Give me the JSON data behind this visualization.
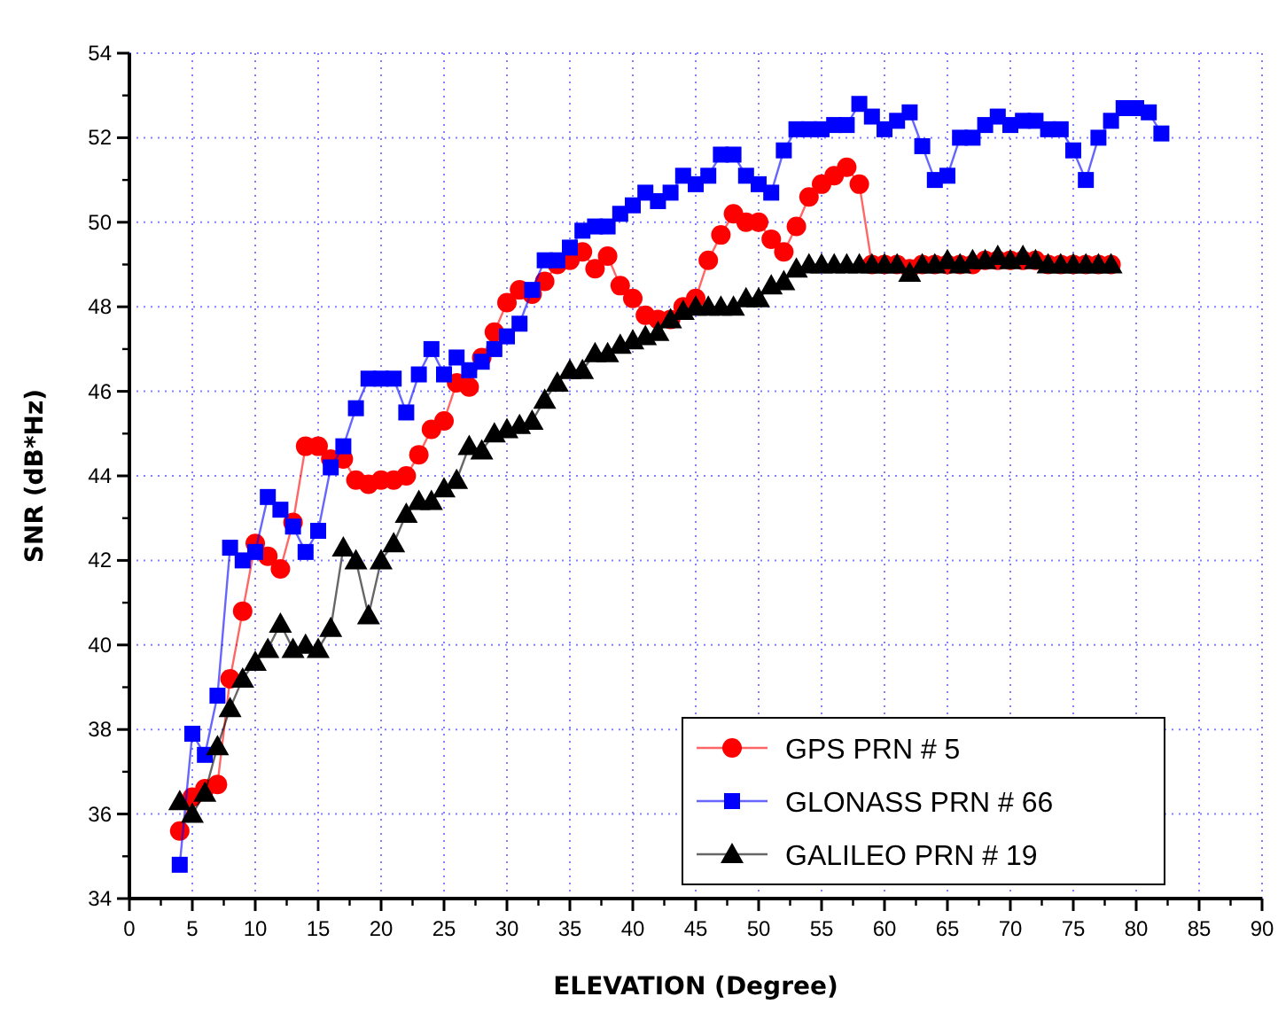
{
  "chart_data": {
    "type": "line",
    "xlabel": "ELEVATION (Degree)",
    "ylabel": "SNR (dB*Hz)",
    "xlim": [
      0,
      90
    ],
    "xticks": [
      0,
      5,
      10,
      15,
      20,
      25,
      30,
      35,
      40,
      45,
      50,
      55,
      60,
      65,
      70,
      75,
      80,
      85,
      90
    ],
    "ylim": [
      34,
      54
    ],
    "yticks": [
      34,
      36,
      38,
      40,
      42,
      44,
      46,
      48,
      50,
      52,
      54
    ],
    "grid": true,
    "legend": "bottom right",
    "line_style": "solid",
    "series": [
      {
        "name": "GPS PRN # 5",
        "color": "#ff0000",
        "marker": "circle",
        "x": [
          4,
          5,
          6,
          7,
          8,
          9,
          10,
          11,
          12,
          13,
          14,
          15,
          16,
          17,
          18,
          19,
          20,
          21,
          22,
          23,
          24,
          25,
          26,
          27,
          28,
          29,
          30,
          31,
          32,
          33,
          34,
          35,
          36,
          37,
          38,
          39,
          40,
          41,
          42,
          43,
          44,
          45,
          46,
          47,
          48,
          49,
          50,
          51,
          52,
          53,
          54,
          55,
          56,
          57,
          58,
          59,
          60,
          61,
          62,
          63,
          64,
          65,
          66,
          67,
          68,
          69,
          70,
          71,
          72,
          73,
          74,
          75,
          76,
          77,
          78
        ],
        "values": [
          35.6,
          36.4,
          36.6,
          36.7,
          39.2,
          40.8,
          42.4,
          42.1,
          41.8,
          42.9,
          44.7,
          44.7,
          44.4,
          44.4,
          43.9,
          43.8,
          43.9,
          43.9,
          44.0,
          44.5,
          45.1,
          45.3,
          46.2,
          46.1,
          46.8,
          47.4,
          48.1,
          48.4,
          48.3,
          48.6,
          49.0,
          49.1,
          49.3,
          48.9,
          49.2,
          48.5,
          48.2,
          47.8,
          47.7,
          47.7,
          48.0,
          48.2,
          49.1,
          49.7,
          50.2,
          50.0,
          50.0,
          49.6,
          49.3,
          49.9,
          50.6,
          50.9,
          51.1,
          51.3,
          50.9,
          49.0,
          49.0,
          49.0,
          48.9,
          49.0,
          49.0,
          49.0,
          49.0,
          49.0,
          49.1,
          49.1,
          49.1,
          49.1,
          49.1,
          49.0,
          49.0,
          49.0,
          49.0,
          49.0,
          49.0
        ]
      },
      {
        "name": "GLONASS PRN # 66",
        "color": "#0000ff",
        "marker": "square",
        "x": [
          4,
          5,
          6,
          7,
          8,
          9,
          10,
          11,
          12,
          13,
          14,
          15,
          16,
          17,
          18,
          19,
          20,
          21,
          22,
          23,
          24,
          25,
          26,
          27,
          28,
          29,
          30,
          31,
          32,
          33,
          34,
          35,
          36,
          37,
          38,
          39,
          40,
          41,
          42,
          43,
          44,
          45,
          46,
          47,
          48,
          49,
          50,
          51,
          52,
          53,
          54,
          55,
          56,
          57,
          58,
          59,
          60,
          61,
          62,
          63,
          64,
          65,
          66,
          67,
          68,
          69,
          70,
          71,
          72,
          73,
          74,
          75,
          76,
          77,
          78,
          79,
          80,
          81,
          82
        ],
        "values": [
          34.8,
          37.9,
          37.4,
          38.8,
          42.3,
          42.0,
          42.2,
          43.5,
          43.2,
          42.8,
          42.2,
          42.7,
          44.2,
          44.7,
          45.6,
          46.3,
          46.3,
          46.3,
          45.5,
          46.4,
          47.0,
          46.4,
          46.8,
          46.5,
          46.7,
          47.0,
          47.3,
          47.6,
          48.4,
          49.1,
          49.1,
          49.4,
          49.8,
          49.9,
          49.9,
          50.2,
          50.4,
          50.7,
          50.5,
          50.7,
          51.1,
          50.9,
          51.1,
          51.6,
          51.6,
          51.1,
          50.9,
          50.7,
          51.7,
          52.2,
          52.2,
          52.2,
          52.3,
          52.3,
          52.8,
          52.5,
          52.2,
          52.4,
          52.6,
          51.8,
          51.0,
          51.1,
          52.0,
          52.0,
          52.3,
          52.5,
          52.3,
          52.4,
          52.4,
          52.2,
          52.2,
          51.7,
          51.0,
          52.0,
          52.4,
          52.7,
          52.7,
          52.6,
          52.1
        ]
      },
      {
        "name": "GALILEO PRN # 19",
        "color": "#000000",
        "marker": "triangle",
        "x": [
          4,
          5,
          6,
          7,
          8,
          9,
          10,
          11,
          12,
          13,
          14,
          15,
          16,
          17,
          18,
          19,
          20,
          21,
          22,
          23,
          24,
          25,
          26,
          27,
          28,
          29,
          30,
          31,
          32,
          33,
          34,
          35,
          36,
          37,
          38,
          39,
          40,
          41,
          42,
          43,
          44,
          45,
          46,
          47,
          48,
          49,
          50,
          51,
          52,
          53,
          54,
          55,
          56,
          57,
          58,
          59,
          60,
          61,
          62,
          63,
          64,
          65,
          66,
          67,
          68,
          69,
          70,
          71,
          72,
          73,
          74,
          75,
          76,
          77,
          78
        ],
        "values": [
          36.3,
          36.0,
          36.5,
          37.6,
          38.5,
          39.2,
          39.6,
          39.9,
          40.5,
          39.9,
          40.0,
          39.9,
          40.4,
          42.3,
          42.0,
          40.7,
          42.0,
          42.4,
          43.1,
          43.4,
          43.4,
          43.7,
          43.9,
          44.7,
          44.6,
          45.0,
          45.1,
          45.2,
          45.3,
          45.8,
          46.2,
          46.5,
          46.5,
          46.9,
          46.9,
          47.1,
          47.2,
          47.3,
          47.4,
          47.7,
          47.9,
          48.0,
          48.0,
          48.0,
          48.0,
          48.2,
          48.2,
          48.5,
          48.6,
          48.9,
          49.0,
          49.0,
          49.0,
          49.0,
          49.0,
          49.0,
          49.0,
          49.0,
          48.8,
          49.0,
          49.0,
          49.1,
          49.0,
          49.1,
          49.1,
          49.2,
          49.1,
          49.2,
          49.1,
          49.0,
          49.0,
          49.0,
          49.0,
          49.0,
          49.0
        ]
      }
    ]
  }
}
